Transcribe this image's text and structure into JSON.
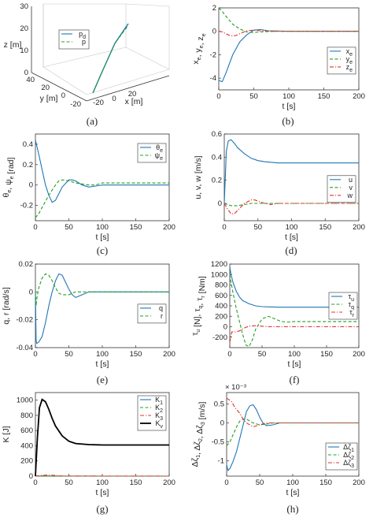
{
  "panels": [
    {
      "caption": "(a)",
      "type": "3d-line",
      "axis_labels": {
        "z": "z [m]",
        "y": "y [m]",
        "x": "x [m]"
      },
      "z_ticks": [
        "0",
        "10",
        "20",
        "30"
      ],
      "y_ticks": [
        "40",
        "20",
        "0",
        "-20"
      ],
      "x_ticks": [
        "0",
        "20"
      ],
      "legend": [
        {
          "name": "p",
          "sub": "d",
          "style": "solid",
          "color": "#1f77b4"
        },
        {
          "name": "p",
          "sub": "",
          "style": "dash",
          "color": "#22a022"
        }
      ]
    },
    {
      "caption": "(b)",
      "xlabel": "t [s]",
      "ylabel": [
        [
          "x",
          "e"
        ],
        [
          ", y",
          ""
        ],
        [
          "e",
          ""
        ],
        [
          ", z",
          ""
        ],
        [
          "e",
          ""
        ]
      ],
      "yticks": [
        -4,
        -2,
        0,
        2
      ],
      "xticks": [
        0,
        50,
        100,
        150,
        200
      ],
      "legend": [
        {
          "name": "x",
          "sub": "e",
          "style": "solid",
          "color": "#1f77b4"
        },
        {
          "name": "y",
          "sub": "e",
          "style": "dash",
          "color": "#22a022"
        },
        {
          "name": "z",
          "sub": "e",
          "style": "dashdot",
          "color": "#e03030"
        }
      ]
    },
    {
      "caption": "(c)",
      "xlabel": "t [s]",
      "yticks": [
        -0.2,
        0,
        0.2,
        0.4
      ],
      "xticks": [
        0,
        50,
        100,
        150,
        200
      ],
      "legend": [
        {
          "name": "θ",
          "sub": "e",
          "style": "solid",
          "color": "#1f77b4"
        },
        {
          "name": "ψ",
          "sub": "e",
          "style": "dash",
          "color": "#22a022"
        }
      ]
    },
    {
      "caption": "(d)",
      "xlabel": "t [s]",
      "ylabel_text": "u, v, w [m/s]",
      "yticks": [
        0,
        0.2,
        0.4,
        0.6
      ],
      "xticks": [
        0,
        50,
        100,
        150,
        200
      ],
      "legend": [
        {
          "name": "u",
          "sub": "",
          "style": "solid",
          "color": "#1f77b4"
        },
        {
          "name": "v",
          "sub": "",
          "style": "dash",
          "color": "#22a022"
        },
        {
          "name": "w",
          "sub": "",
          "style": "dashdot",
          "color": "#e03030"
        }
      ]
    },
    {
      "caption": "(e)",
      "xlabel": "t [s]",
      "ylabel_text": "q, r [rad/s]",
      "yticks": [
        -0.04,
        -0.02,
        0,
        0.02
      ],
      "xticks": [
        0,
        50,
        100,
        150,
        200
      ],
      "legend": [
        {
          "name": "q",
          "sub": "",
          "style": "solid",
          "color": "#1f77b4"
        },
        {
          "name": "r",
          "sub": "",
          "style": "dash",
          "color": "#22a022"
        }
      ]
    },
    {
      "caption": "(f)",
      "xlabel": "t [s]",
      "yticks": [
        -200,
        0,
        200,
        400,
        600,
        800,
        1000,
        1200
      ],
      "xticks": [
        0,
        50,
        100,
        150,
        200
      ],
      "legend": [
        {
          "name": "τ",
          "sub": "u",
          "style": "solid",
          "color": "#1f77b4"
        },
        {
          "name": "τ",
          "sub": "q",
          "style": "dash",
          "color": "#22a022"
        },
        {
          "name": "τ",
          "sub": "r",
          "style": "dashdot",
          "color": "#e03030"
        }
      ]
    },
    {
      "caption": "(g)",
      "xlabel": "t [s]",
      "ylabel_text": "K [J]",
      "yticks": [
        0,
        200,
        400,
        600,
        800,
        1000
      ],
      "xticks": [
        0,
        50,
        100,
        150,
        200
      ],
      "legend": [
        {
          "name": "K",
          "sub": "1",
          "style": "solid",
          "color": "#1f77b4"
        },
        {
          "name": "K",
          "sub": "2",
          "style": "dash",
          "color": "#22a022"
        },
        {
          "name": "K",
          "sub": "3",
          "style": "dashdot",
          "color": "#e03030"
        },
        {
          "name": "K",
          "sub": "v",
          "style": "solid",
          "color": "#000000"
        }
      ]
    },
    {
      "caption": "(h)",
      "xlabel": "t [s]",
      "exponent_label": "× 10⁻³",
      "yticks": [
        -1,
        -0.5,
        0,
        0.5
      ],
      "xticks": [
        0,
        50,
        100,
        150,
        200
      ],
      "legend": [
        {
          "name": "Δζ",
          "sub": "1",
          "style": "solid",
          "color": "#1f77b4"
        },
        {
          "name": "Δζ",
          "sub": "2",
          "style": "dash",
          "color": "#22a022"
        },
        {
          "name": "Δζ",
          "sub": "3",
          "style": "dashdot",
          "color": "#e03030"
        }
      ]
    }
  ],
  "chart_data": [
    {
      "type": "line",
      "panel": "a",
      "title": "",
      "series": [
        {
          "name": "p_d",
          "x": [
            -18,
            -5,
            8,
            20
          ],
          "y": [
            40,
            25,
            10,
            -5
          ],
          "z": [
            0,
            12,
            25,
            38
          ]
        },
        {
          "name": "p",
          "x": [
            -18,
            -5,
            8,
            20
          ],
          "y": [
            40,
            25,
            10,
            -5
          ],
          "z": [
            0,
            12,
            25,
            38
          ]
        }
      ]
    },
    {
      "type": "line",
      "panel": "b",
      "xlabel": "t [s]",
      "ylabel": "x_e, y_e, z_e",
      "xlim": [
        0,
        200
      ],
      "ylim": [
        -5,
        2
      ],
      "series": [
        {
          "name": "x_e",
          "x": [
            0,
            5,
            10,
            20,
            30,
            40,
            50,
            60,
            70,
            100,
            150,
            200
          ],
          "y": [
            -4.2,
            -4.3,
            -3.6,
            -2.0,
            -0.9,
            -0.3,
            0.1,
            0.15,
            0.05,
            0,
            0,
            0
          ]
        },
        {
          "name": "y_e",
          "x": [
            0,
            5,
            10,
            20,
            30,
            40,
            50,
            60,
            80,
            100,
            150,
            200
          ],
          "y": [
            2.0,
            1.7,
            1.3,
            0.6,
            0.2,
            -0.05,
            -0.1,
            -0.05,
            0,
            0,
            0,
            0
          ]
        },
        {
          "name": "z_e",
          "x": [
            0,
            5,
            10,
            15,
            20,
            25,
            30,
            40,
            50,
            60,
            80,
            200
          ],
          "y": [
            0,
            -0.05,
            -0.2,
            -0.35,
            -0.4,
            -0.35,
            -0.2,
            0.05,
            0.1,
            0.05,
            0,
            0
          ]
        }
      ]
    },
    {
      "type": "line",
      "panel": "c",
      "xlabel": "t [s]",
      "ylabel": "θ_e, ψ_e [rad]",
      "xlim": [
        0,
        200
      ],
      "ylim": [
        -0.35,
        0.5
      ],
      "series": [
        {
          "name": "θ_e",
          "x": [
            0,
            5,
            10,
            15,
            20,
            25,
            30,
            40,
            50,
            55,
            60,
            70,
            80,
            90,
            100,
            150,
            200
          ],
          "y": [
            0.44,
            0.3,
            0.15,
            0.0,
            -0.1,
            -0.17,
            -0.15,
            -0.02,
            0.05,
            0.05,
            0.04,
            0.0,
            -0.02,
            -0.01,
            0,
            0,
            0
          ]
        },
        {
          "name": "ψ_e",
          "x": [
            0,
            5,
            10,
            20,
            30,
            35,
            40,
            50,
            60,
            70,
            80,
            90,
            100,
            150,
            200
          ],
          "y": [
            -0.32,
            -0.28,
            -0.22,
            -0.1,
            0.0,
            0.04,
            0.05,
            0.04,
            0.02,
            0.01,
            0.0,
            0.0,
            0.02,
            0.02,
            0.02
          ]
        }
      ]
    },
    {
      "type": "line",
      "panel": "d",
      "xlabel": "t [s]",
      "ylabel": "u, v, w [m/s]",
      "xlim": [
        0,
        200
      ],
      "ylim": [
        -0.15,
        0.6
      ],
      "series": [
        {
          "name": "u",
          "x": [
            0,
            3,
            6,
            10,
            15,
            20,
            30,
            40,
            50,
            60,
            80,
            100,
            150,
            200
          ],
          "y": [
            0.0,
            0.45,
            0.54,
            0.55,
            0.52,
            0.48,
            0.43,
            0.39,
            0.37,
            0.36,
            0.35,
            0.35,
            0.35,
            0.35
          ]
        },
        {
          "name": "v",
          "x": [
            0,
            5,
            10,
            20,
            30,
            40,
            50,
            60,
            200
          ],
          "y": [
            0,
            -0.01,
            -0.02,
            -0.02,
            -0.01,
            0,
            0,
            0,
            0
          ]
        },
        {
          "name": "w",
          "x": [
            0,
            5,
            10,
            15,
            20,
            30,
            40,
            45,
            50,
            60,
            70,
            80,
            200
          ],
          "y": [
            0,
            -0.05,
            -0.09,
            -0.09,
            -0.06,
            0.0,
            0.03,
            0.03,
            0.02,
            0.0,
            -0.01,
            0,
            0
          ]
        }
      ]
    },
    {
      "type": "line",
      "panel": "e",
      "xlabel": "t [s]",
      "ylabel": "q, r [rad/s]",
      "xlim": [
        0,
        200
      ],
      "ylim": [
        -0.04,
        0.02
      ],
      "series": [
        {
          "name": "q",
          "x": [
            0,
            1,
            2,
            5,
            10,
            15,
            20,
            25,
            30,
            35,
            40,
            45,
            50,
            55,
            60,
            70,
            80,
            90,
            100,
            150,
            200
          ],
          "y": [
            0,
            -0.035,
            -0.037,
            -0.036,
            -0.032,
            -0.022,
            -0.01,
            0.0,
            0.008,
            0.013,
            0.012,
            0.007,
            0.002,
            -0.002,
            -0.004,
            -0.002,
            0.0,
            0.0,
            0,
            0,
            0
          ]
        },
        {
          "name": "r",
          "x": [
            0,
            1,
            2,
            5,
            10,
            15,
            20,
            25,
            30,
            35,
            40,
            50,
            60,
            70,
            80,
            200
          ],
          "y": [
            0,
            -0.01,
            -0.005,
            0.003,
            0.01,
            0.013,
            0.012,
            0.008,
            0.003,
            -0.001,
            -0.002,
            -0.002,
            0,
            0,
            0,
            0
          ]
        }
      ]
    },
    {
      "type": "line",
      "panel": "f",
      "xlabel": "t [s]",
      "ylabel": "τ_u [N], τ_q, τ_r [Nm]",
      "xlim": [
        0,
        200
      ],
      "ylim": [
        -400,
        1200
      ],
      "series": [
        {
          "name": "τ_u",
          "x": [
            0,
            2,
            5,
            10,
            15,
            20,
            30,
            40,
            50,
            60,
            80,
            100,
            150,
            200
          ],
          "y": [
            1150,
            1000,
            850,
            680,
            570,
            500,
            440,
            400,
            385,
            380,
            375,
            375,
            375,
            375
          ]
        },
        {
          "name": "τ_q",
          "x": [
            0,
            2,
            5,
            10,
            15,
            20,
            25,
            30,
            35,
            40,
            50,
            60,
            70,
            80,
            90,
            100,
            150,
            200
          ],
          "y": [
            1000,
            850,
            650,
            350,
            100,
            -150,
            -350,
            -380,
            -250,
            -50,
            150,
            200,
            150,
            100,
            90,
            100,
            100,
            100
          ]
        },
        {
          "name": "τ_r",
          "x": [
            0,
            3,
            8,
            15,
            20,
            25,
            30,
            40,
            50,
            60,
            80,
            200
          ],
          "y": [
            -300,
            -100,
            -100,
            -80,
            -40,
            -10,
            10,
            20,
            10,
            0,
            0,
            0
          ]
        }
      ]
    },
    {
      "type": "line",
      "panel": "g",
      "xlabel": "t [s]",
      "ylabel": "K [J]",
      "xlim": [
        0,
        200
      ],
      "ylim": [
        0,
        1100
      ],
      "series": [
        {
          "name": "K_1",
          "x": [
            0,
            3,
            6,
            10,
            15,
            20,
            25,
            30,
            40,
            50,
            60,
            80,
            100,
            150,
            200
          ],
          "y": [
            0,
            500,
            900,
            1010,
            980,
            880,
            760,
            660,
            530,
            460,
            430,
            415,
            410,
            410,
            410
          ]
        },
        {
          "name": "K_2",
          "x": [
            0,
            10,
            20,
            30,
            40,
            200
          ],
          "y": [
            0,
            3,
            2,
            1,
            0,
            0
          ]
        },
        {
          "name": "K_3",
          "x": [
            0,
            10,
            20,
            30,
            40,
            200
          ],
          "y": [
            0,
            10,
            15,
            8,
            2,
            0
          ]
        },
        {
          "name": "K_v",
          "x": [
            0,
            3,
            6,
            10,
            15,
            20,
            25,
            30,
            40,
            50,
            60,
            80,
            100,
            150,
            200
          ],
          "y": [
            0,
            500,
            900,
            1010,
            980,
            880,
            760,
            660,
            530,
            460,
            430,
            415,
            410,
            410,
            410
          ]
        }
      ]
    },
    {
      "type": "line",
      "panel": "h",
      "xlabel": "t [s]",
      "ylabel": "Δζ_1, Δζ_2, Δζ_3 [m/s]",
      "xlim": [
        0,
        200
      ],
      "ylim": [
        -1.4,
        0.8
      ],
      "y_scale_factor": "10^-3",
      "series": [
        {
          "name": "Δζ_1",
          "x": [
            0,
            2,
            5,
            10,
            15,
            20,
            25,
            30,
            35,
            40,
            45,
            50,
            55,
            60,
            70,
            80,
            100,
            150,
            200
          ],
          "y": [
            -1.1,
            -1.25,
            -1.2,
            -1.0,
            -0.75,
            -0.4,
            -0.05,
            0.3,
            0.45,
            0.48,
            0.35,
            0.15,
            0.0,
            -0.07,
            -0.05,
            0,
            0,
            0,
            0
          ]
        },
        {
          "name": "Δζ_2",
          "x": [
            0,
            5,
            10,
            15,
            20,
            25,
            30,
            35,
            40,
            50,
            60,
            70,
            80,
            100,
            200
          ],
          "y": [
            -0.6,
            -0.5,
            -0.3,
            -0.1,
            0.05,
            0.1,
            0.1,
            0.05,
            0.0,
            -0.05,
            -0.03,
            0,
            0,
            0,
            0
          ]
        },
        {
          "name": "Δζ_3",
          "x": [
            0,
            3,
            8,
            12,
            20,
            25,
            30,
            40,
            50,
            60,
            80,
            100,
            200
          ],
          "y": [
            0.65,
            0.62,
            0.55,
            0.42,
            0.25,
            0.1,
            0.0,
            -0.1,
            -0.05,
            0.0,
            0,
            0,
            0
          ]
        }
      ]
    }
  ]
}
